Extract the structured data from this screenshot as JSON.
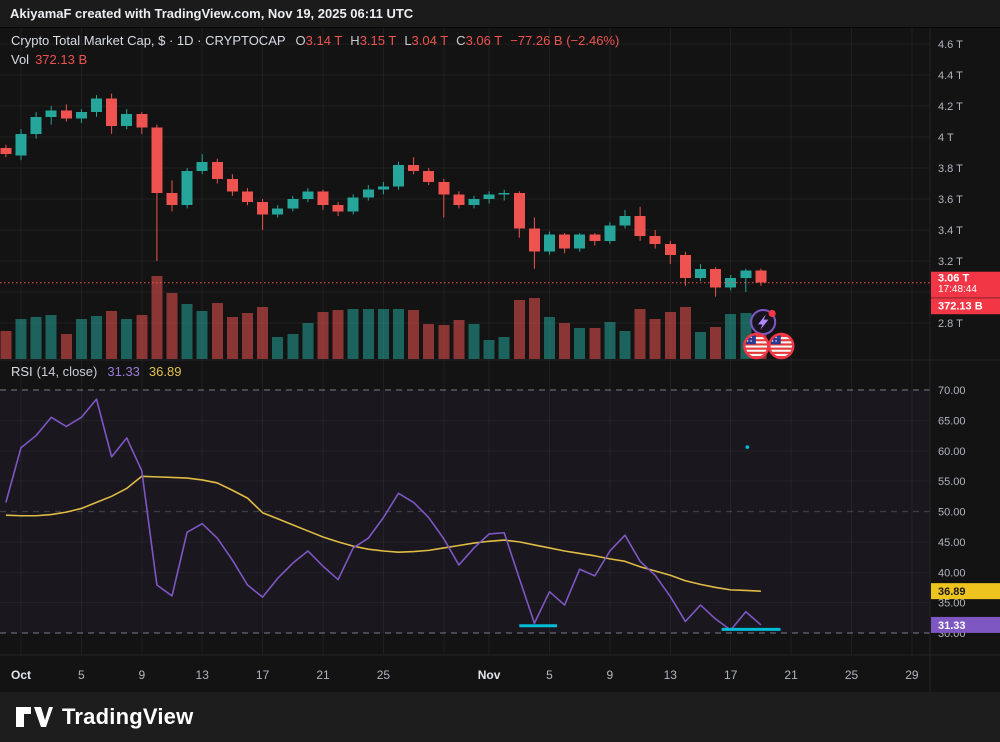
{
  "titlebar": {
    "text": "AkiyamaF created with TradingView.com, Nov 19, 2025 06:11 UTC"
  },
  "legend": {
    "symbol_title": "Crypto Total Market Cap, $ · 1D · CRYPTOCAP",
    "open_label": "O",
    "open": "3.14 T",
    "high_label": "H",
    "high": "3.15 T",
    "low_label": "L",
    "low": "3.04 T",
    "close_label": "C",
    "close": "3.06 T",
    "change": "−77.26 B (−2.46%)",
    "vol_label": "Vol",
    "vol_value": "372.13 B"
  },
  "rsi_legend": {
    "name": "RSI",
    "params": "(14, close)",
    "value": "31.33",
    "ma_value": "36.89"
  },
  "price_axis": {
    "ticks": [
      {
        "label": "4.6 T",
        "value": 4.6
      },
      {
        "label": "4.4 T",
        "value": 4.4
      },
      {
        "label": "4.2 T",
        "value": 4.2
      },
      {
        "label": "4 T",
        "value": 4.0
      },
      {
        "label": "3.8 T",
        "value": 3.8
      },
      {
        "label": "3.6 T",
        "value": 3.6
      },
      {
        "label": "3.4 T",
        "value": 3.4
      },
      {
        "label": "3.2 T",
        "value": 3.2
      },
      {
        "label": "3 T",
        "value": 3.0
      },
      {
        "label": "2.8 T",
        "value": 2.8
      }
    ],
    "price_label": {
      "price": "3.06 T",
      "countdown": "17:48:44"
    },
    "volume_label": "372.13 B"
  },
  "rsi_axis": {
    "ticks": [
      {
        "label": "70.00",
        "value": 70
      },
      {
        "label": "65.00",
        "value": 65
      },
      {
        "label": "60.00",
        "value": 60
      },
      {
        "label": "55.00",
        "value": 55
      },
      {
        "label": "50.00",
        "value": 50
      },
      {
        "label": "45.00",
        "value": 45
      },
      {
        "label": "40.00",
        "value": 40
      },
      {
        "label": "35.00",
        "value": 35
      },
      {
        "label": "30.00",
        "value": 30
      }
    ],
    "ma_label": "36.89",
    "rsi_label": "31.33"
  },
  "time_axis": {
    "labels": [
      {
        "text": "Oct",
        "d": 0,
        "major": true
      },
      {
        "text": "5",
        "d": 4
      },
      {
        "text": "9",
        "d": 8
      },
      {
        "text": "13",
        "d": 12
      },
      {
        "text": "17",
        "d": 16
      },
      {
        "text": "21",
        "d": 20
      },
      {
        "text": "25",
        "d": 24
      },
      {
        "text": "Nov",
        "d": 31,
        "major": true
      },
      {
        "text": "5",
        "d": 35
      },
      {
        "text": "9",
        "d": 39
      },
      {
        "text": "13",
        "d": 43
      },
      {
        "text": "17",
        "d": 47
      },
      {
        "text": "21",
        "d": 51
      },
      {
        "text": "25",
        "d": 55
      },
      {
        "text": "29",
        "d": 59
      }
    ],
    "grid_days": [
      0,
      4,
      8,
      12,
      16,
      20,
      24,
      28,
      31,
      35,
      39,
      43,
      47,
      51,
      55,
      59
    ]
  },
  "footer": {
    "brand": "TradingView"
  },
  "colors": {
    "up": "#26a69a",
    "down": "#ef5350",
    "vol_up": "rgba(38,166,154,0.55)",
    "vol_down": "rgba(239,83,80,0.55)",
    "rsi_line": "#7e57c2",
    "rsi_ma": "#e0bc45",
    "rsi_band": "rgba(126,87,194,0.07)",
    "price_label_bg": "#f23645",
    "ma_label_bg": "#efc31d",
    "rsi_label_bg": "#7e57c2",
    "cyan_marker": "#00bcd4",
    "axis_text": "#b2b5be",
    "grid": "rgba(255,255,255,0.05)",
    "dashed_level": "#9aa0ab",
    "separator": "#26262b"
  },
  "chart_data": {
    "type": "candlestick",
    "title": "Crypto Total Market Cap",
    "symbol": "CRYPTOCAP",
    "interval": "1D",
    "price_unit": "T (trillions USD)",
    "ylim": [
      2.75,
      4.65
    ],
    "rsi_ylim": [
      26,
      71
    ],
    "dates": [
      "Sep 30",
      "Oct 1",
      "Oct 2",
      "Oct 3",
      "Oct 4",
      "Oct 5",
      "Oct 6",
      "Oct 7",
      "Oct 8",
      "Oct 9",
      "Oct 10",
      "Oct 11",
      "Oct 12",
      "Oct 13",
      "Oct 14",
      "Oct 15",
      "Oct 16",
      "Oct 17",
      "Oct 18",
      "Oct 19",
      "Oct 20",
      "Oct 21",
      "Oct 22",
      "Oct 23",
      "Oct 24",
      "Oct 25",
      "Oct 26",
      "Oct 27",
      "Oct 28",
      "Oct 29",
      "Oct 30",
      "Oct 31",
      "Nov 1",
      "Nov 2",
      "Nov 3",
      "Nov 4",
      "Nov 5",
      "Nov 6",
      "Nov 7",
      "Nov 8",
      "Nov 9",
      "Nov 10",
      "Nov 11",
      "Nov 12",
      "Nov 13",
      "Nov 14",
      "Nov 15",
      "Nov 16",
      "Nov 17",
      "Nov 18",
      "Nov 19"
    ],
    "open": [
      3.93,
      3.88,
      4.02,
      4.13,
      4.17,
      4.12,
      4.16,
      4.25,
      4.07,
      4.15,
      4.06,
      3.64,
      3.56,
      3.78,
      3.84,
      3.73,
      3.65,
      3.58,
      3.5,
      3.54,
      3.6,
      3.65,
      3.56,
      3.52,
      3.61,
      3.66,
      3.68,
      3.82,
      3.78,
      3.71,
      3.63,
      3.56,
      3.6,
      3.63,
      3.64,
      3.41,
      3.26,
      3.37,
      3.28,
      3.37,
      3.33,
      3.43,
      3.49,
      3.36,
      3.31,
      3.24,
      3.09,
      3.15,
      3.03,
      3.09,
      3.14
    ],
    "high": [
      3.95,
      4.05,
      4.16,
      4.2,
      4.21,
      4.18,
      4.27,
      4.28,
      4.18,
      4.16,
      4.08,
      3.72,
      3.8,
      3.89,
      3.86,
      3.76,
      3.67,
      3.6,
      3.56,
      3.62,
      3.67,
      3.66,
      3.58,
      3.63,
      3.69,
      3.71,
      3.84,
      3.87,
      3.8,
      3.73,
      3.65,
      3.62,
      3.65,
      3.66,
      3.65,
      3.48,
      3.39,
      3.38,
      3.38,
      3.38,
      3.45,
      3.53,
      3.55,
      3.4,
      3.33,
      3.26,
      3.18,
      3.16,
      3.11,
      3.15,
      3.15
    ],
    "low": [
      3.87,
      3.85,
      3.99,
      4.08,
      4.1,
      4.09,
      4.13,
      4.02,
      4.05,
      4.02,
      3.2,
      3.52,
      3.54,
      3.76,
      3.7,
      3.62,
      3.56,
      3.4,
      3.48,
      3.52,
      3.58,
      3.53,
      3.49,
      3.5,
      3.59,
      3.63,
      3.66,
      3.76,
      3.69,
      3.48,
      3.54,
      3.54,
      3.57,
      3.59,
      3.35,
      3.15,
      3.24,
      3.25,
      3.26,
      3.3,
      3.31,
      3.41,
      3.33,
      3.28,
      3.18,
      3.04,
      3.07,
      2.97,
      3.01,
      3.0,
      3.04
    ],
    "close": [
      3.89,
      4.02,
      4.13,
      4.17,
      4.12,
      4.16,
      4.25,
      4.07,
      4.15,
      4.06,
      3.64,
      3.56,
      3.78,
      3.84,
      3.73,
      3.65,
      3.58,
      3.5,
      3.54,
      3.6,
      3.65,
      3.56,
      3.52,
      3.61,
      3.66,
      3.68,
      3.82,
      3.78,
      3.71,
      3.63,
      3.56,
      3.6,
      3.63,
      3.64,
      3.41,
      3.26,
      3.37,
      3.28,
      3.37,
      3.33,
      3.43,
      3.49,
      3.36,
      3.31,
      3.24,
      3.09,
      3.15,
      3.03,
      3.09,
      3.14,
      3.06
    ],
    "volume_b": [
      280,
      400,
      420,
      440,
      250,
      400,
      430,
      480,
      400,
      440,
      830,
      660,
      550,
      480,
      560,
      420,
      460,
      520,
      220,
      250,
      360,
      470,
      490,
      500,
      500,
      500,
      500,
      490,
      350,
      340,
      390,
      350,
      190,
      220,
      590,
      610,
      420,
      360,
      310,
      310,
      370,
      280,
      500,
      400,
      470,
      520,
      270,
      320,
      450,
      460,
      372.13
    ],
    "last_close": 3.06,
    "last_volume_b": 372.13,
    "rsi": {
      "period": "14, close",
      "overbought": 70,
      "mid": 50,
      "oversold": 30,
      "values": [
        51.5,
        60.5,
        62.5,
        65.5,
        64.0,
        65.5,
        68.5,
        59.0,
        62.1,
        56.7,
        37.9,
        36.1,
        46.6,
        48.0,
        45.6,
        42.0,
        37.9,
        35.9,
        39.0,
        41.5,
        43.5,
        41.0,
        38.8,
        44.0,
        45.6,
        49.0,
        53.0,
        51.5,
        49.0,
        45.5,
        41.2,
        44.0,
        46.3,
        46.5,
        39.0,
        31.6,
        36.8,
        34.6,
        40.5,
        39.4,
        43.5,
        46.1,
        41.8,
        39.5,
        36.0,
        31.9,
        34.6,
        32.3,
        30.5,
        33.5,
        31.33
      ],
      "ma": [
        49.4,
        49.3,
        49.3,
        49.5,
        49.9,
        50.5,
        51.5,
        52.5,
        53.8,
        55.8,
        55.7,
        55.6,
        55.5,
        55.2,
        54.7,
        53.5,
        52.2,
        49.8,
        48.8,
        47.8,
        46.8,
        45.8,
        45.0,
        44.3,
        43.8,
        43.5,
        43.3,
        43.4,
        43.6,
        44.0,
        44.4,
        44.8,
        45.1,
        45.3,
        45.0,
        44.5,
        44.0,
        43.5,
        43.1,
        42.7,
        42.2,
        41.8,
        40.9,
        40.2,
        39.5,
        38.6,
        38.0,
        37.5,
        37.1,
        37.0,
        36.89
      ],
      "last_value": 31.33,
      "last_ma": 36.89
    },
    "markers": {
      "oversold_touch_segments": [
        {
          "from_date": "Nov 3",
          "to_date": "Nov 5",
          "d1": 33,
          "d2": 35.5,
          "rsi": 31.2
        },
        {
          "from_date": "Nov 16",
          "to_date": "Nov 20",
          "d1": 46.4,
          "d2": 50.3,
          "rsi": 30.6
        }
      ],
      "dot": {
        "d": 48.1,
        "rsi": 60.6
      }
    },
    "events": {
      "lightning": {
        "d": 49.15,
        "y": 322,
        "notification_dot": true
      },
      "flags": [
        {
          "d": 48.7,
          "y": 346
        },
        {
          "d": 50.35,
          "y": 346
        }
      ]
    }
  }
}
